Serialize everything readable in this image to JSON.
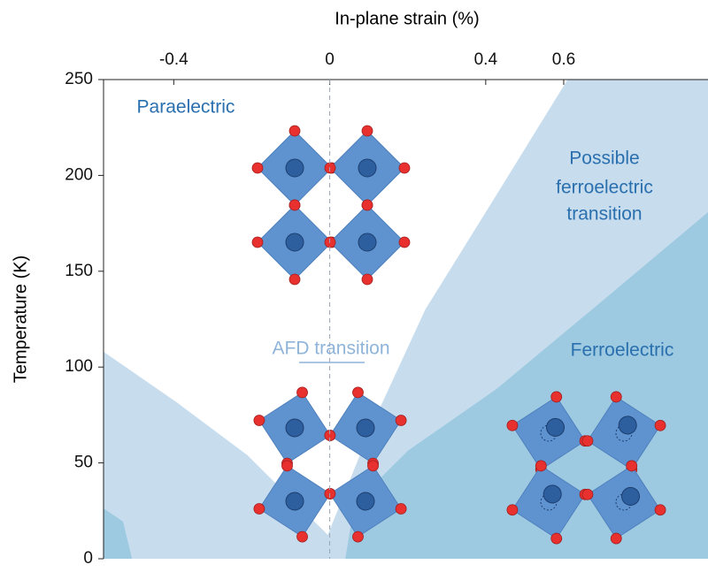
{
  "chart_data": {
    "type": "phase-diagram",
    "x_label": "In-plane strain (%)",
    "y_label": "Temperature (K)",
    "xlim": [
      -0.58,
      0.97
    ],
    "ylim": [
      0,
      250
    ],
    "xticks": [
      -0.4,
      0,
      0.4,
      0.6
    ],
    "yticks": [
      0,
      50,
      100,
      150,
      200,
      250
    ],
    "regions": [
      {
        "color": "#c7ddee",
        "x": [
          -0.58,
          -0.393,
          -0.211,
          -0.074,
          -0.005,
          0.109,
          0.245,
          0.428,
          0.61,
          0.97,
          0.97,
          -0.58
        ],
        "y": [
          108,
          81.7,
          54,
          26.3,
          12.5,
          70,
          130,
          190,
          250,
          250,
          0,
          0
        ]
      },
      {
        "color": "#9dcae1",
        "x": [
          0.04,
          0.063,
          0.2,
          0.428,
          0.7,
          0.97,
          0.97
        ],
        "y": [
          0,
          28.6,
          56.3,
          88.6,
          134.7,
          180.8,
          0
        ]
      },
      {
        "color": "#9dcae1",
        "x": [
          -0.58,
          -0.53,
          -0.507,
          -0.58
        ],
        "y": [
          26.3,
          19.4,
          0,
          0
        ]
      }
    ],
    "annotations": [
      {
        "text": "Paraelectric",
        "color": "#2a6fae"
      },
      {
        "text": "Possible",
        "color": "#2a6fae"
      },
      {
        "text": "ferroelectric",
        "color": "#2a6fae"
      },
      {
        "text": "transition",
        "color": "#2a6fae"
      },
      {
        "text": "AFD transition",
        "color": "#8fb4d9"
      },
      {
        "text": "Ferroelectric",
        "color": "#2a6fae"
      }
    ]
  }
}
